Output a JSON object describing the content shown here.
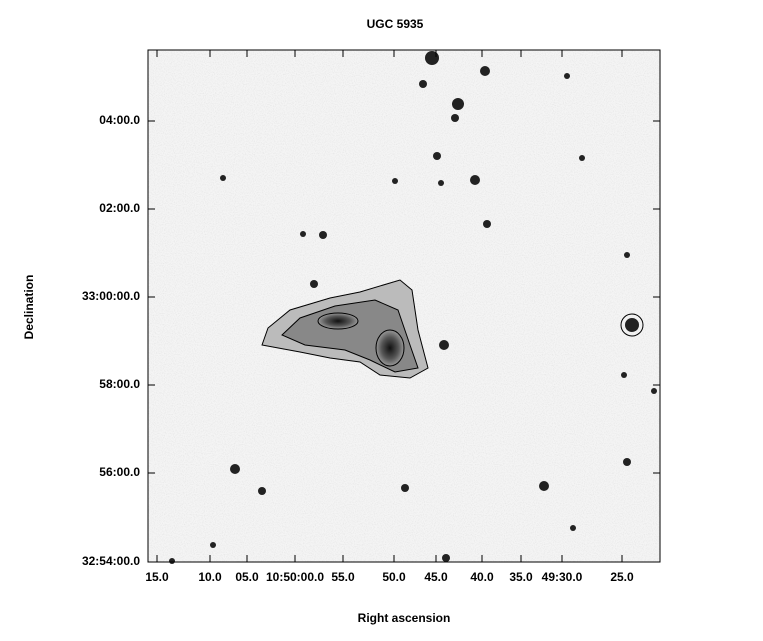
{
  "title": "UGC 5935",
  "x_label": "Right ascension",
  "y_label": "Declination",
  "x_ticks": [
    "15.0",
    "10.0",
    "05.0",
    "10:50:00.0",
    "55.0",
    "50.0",
    "45.0",
    "40.0",
    "35.0",
    "49:30.0",
    "25.0"
  ],
  "y_ticks": [
    "04:00.0",
    "02:00.0",
    "33:00:00.0",
    "58:00.0",
    "56:00.0",
    "32:54:00.0"
  ]
}
